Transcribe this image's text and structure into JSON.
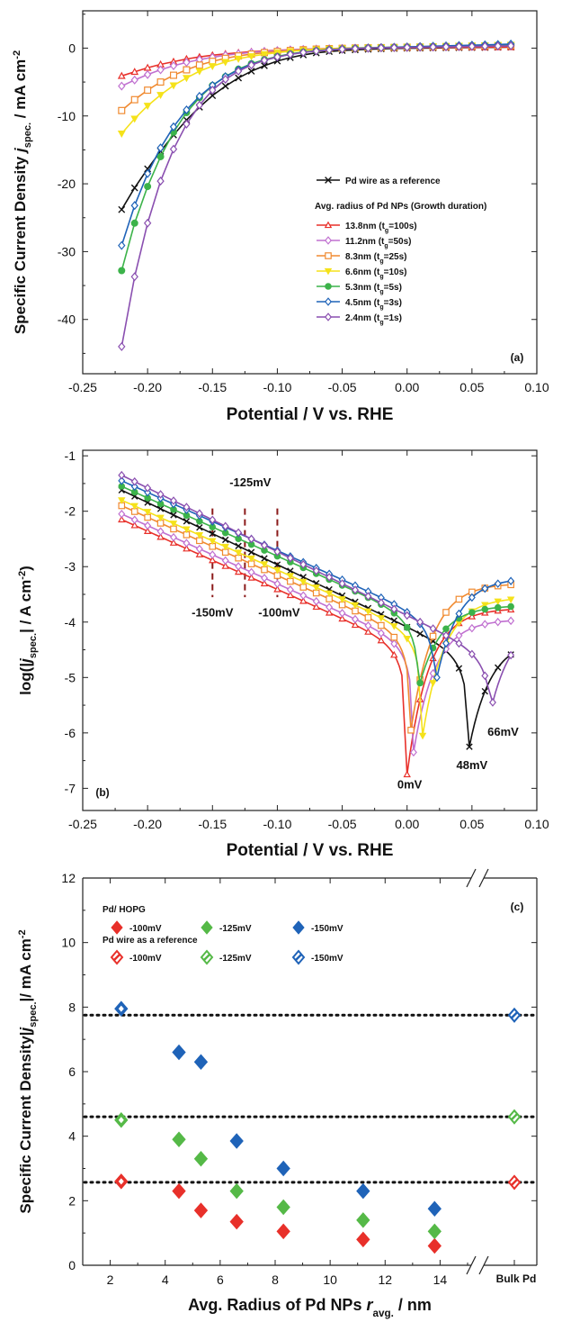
{
  "chart_data": [
    {
      "type": "line",
      "panel_label": "(a)",
      "xlabel": "Potential / V vs. RHE",
      "ylabel": "Specific Current Density j_spec. / mA cm^-2",
      "ylabel_parts": {
        "main": "Specific Current Density ",
        "j": "j",
        "sub": "spec.",
        "unit": " / mA cm",
        "sup": "-2"
      },
      "xlim": [
        -0.25,
        0.1
      ],
      "ylim": [
        -48,
        5.5
      ],
      "xticks": [
        "-0.25",
        "-0.20",
        "-0.15",
        "-0.10",
        "-0.05",
        "0.00",
        "0.05",
        "0.10"
      ],
      "yticks": [
        "0",
        "-10",
        "-20",
        "-30",
        "-40"
      ],
      "grid": false,
      "legend_position": "center-right",
      "legend_header": "Avg. radius of Pd NPs (Growth duration)",
      "x": [
        -0.22,
        -0.21,
        -0.2,
        -0.19,
        -0.18,
        -0.17,
        -0.16,
        -0.15,
        -0.14,
        -0.13,
        -0.12,
        -0.11,
        -0.1,
        -0.09,
        -0.08,
        -0.07,
        -0.06,
        -0.05,
        -0.04,
        -0.03,
        -0.02,
        -0.01,
        0.0,
        0.01,
        0.02,
        0.03,
        0.04,
        0.05,
        0.06,
        0.07,
        0.08
      ],
      "series": [
        {
          "name": "Pd wire as a reference",
          "color": "#111111",
          "marker": "x",
          "values": [
            -23.8,
            -20.6,
            -17.8,
            -15.2,
            -12.8,
            -10.6,
            -8.7,
            -7.0,
            -5.6,
            -4.4,
            -3.4,
            -2.6,
            -1.9,
            -1.4,
            -1.0,
            -0.7,
            -0.5,
            -0.35,
            -0.25,
            -0.17,
            -0.1,
            -0.05,
            -0.02,
            0.0,
            0.02,
            0.04,
            0.06,
            0.08,
            0.1,
            0.12,
            0.15
          ]
        },
        {
          "name": "13.8nm (t_g=100s)",
          "label_main": "13.8nm (t",
          "label_sub": "g",
          "label_tail": "=100s)",
          "color": "#e8302a",
          "marker": "triangle",
          "values": [
            -4.1,
            -3.5,
            -2.9,
            -2.4,
            -2.0,
            -1.6,
            -1.3,
            -1.05,
            -0.85,
            -0.68,
            -0.53,
            -0.42,
            -0.32,
            -0.24,
            -0.17,
            -0.11,
            -0.06,
            -0.02,
            0.0,
            0.02,
            0.04,
            0.05,
            0.06,
            0.08,
            0.09,
            0.1,
            0.11,
            0.12,
            0.13,
            0.14,
            0.15
          ]
        },
        {
          "name": "11.2nm (t_g=50s)",
          "label_main": "11.2nm (t",
          "label_sub": "g",
          "label_tail": "=50s)",
          "color": "#c070d0",
          "marker": "diamond",
          "values": [
            -5.6,
            -4.7,
            -3.9,
            -3.2,
            -2.6,
            -2.1,
            -1.7,
            -1.35,
            -1.05,
            -0.82,
            -0.63,
            -0.48,
            -0.36,
            -0.26,
            -0.18,
            -0.12,
            -0.07,
            -0.03,
            0.0,
            0.03,
            0.06,
            0.08,
            0.1,
            0.13,
            0.16,
            0.19,
            0.22,
            0.25,
            0.28,
            0.31,
            0.35
          ]
        },
        {
          "name": "8.3nm (t_g=25s)",
          "label_main": "8.3nm (t",
          "label_sub": "g",
          "label_tail": "=25s)",
          "color": "#f08a30",
          "marker": "square",
          "values": [
            -9.2,
            -7.6,
            -6.2,
            -5.0,
            -4.0,
            -3.2,
            -2.5,
            -1.95,
            -1.5,
            -1.15,
            -0.88,
            -0.66,
            -0.49,
            -0.35,
            -0.24,
            -0.15,
            -0.08,
            -0.03,
            0.01,
            0.04,
            0.07,
            0.1,
            0.13,
            0.16,
            0.19,
            0.22,
            0.25,
            0.28,
            0.31,
            0.34,
            0.38
          ]
        },
        {
          "name": "6.6nm (t_g=10s)",
          "label_main": "6.6nm (t",
          "label_sub": "g",
          "label_tail": "=10s)",
          "color": "#f5e21a",
          "marker": "triangle-down",
          "values": [
            -12.6,
            -10.4,
            -8.5,
            -6.9,
            -5.5,
            -4.4,
            -3.4,
            -2.65,
            -2.05,
            -1.57,
            -1.2,
            -0.9,
            -0.66,
            -0.47,
            -0.32,
            -0.2,
            -0.1,
            -0.03,
            0.02,
            0.06,
            0.1,
            0.14,
            0.18,
            0.22,
            0.26,
            0.3,
            0.34,
            0.38,
            0.42,
            0.46,
            0.5
          ]
        },
        {
          "name": "5.3nm (t_g=5s)",
          "label_main": "5.3nm (t",
          "label_sub": "g",
          "label_tail": "=5s)",
          "color": "#3cb34a",
          "marker": "circle",
          "values": [
            -32.8,
            -25.8,
            -20.4,
            -16.0,
            -12.4,
            -9.5,
            -7.3,
            -5.5,
            -4.2,
            -3.1,
            -2.3,
            -1.7,
            -1.22,
            -0.85,
            -0.58,
            -0.38,
            -0.23,
            -0.12,
            -0.04,
            0.02,
            0.07,
            0.11,
            0.15,
            0.19,
            0.23,
            0.27,
            0.31,
            0.35,
            0.39,
            0.43,
            0.47
          ]
        },
        {
          "name": "4.5nm (t_g=3s)",
          "label_main": "4.5nm (t",
          "label_sub": "g",
          "label_tail": "=3s)",
          "color": "#1f63b8",
          "marker": "diamond",
          "values": [
            -29.1,
            -23.2,
            -18.5,
            -14.7,
            -11.6,
            -9.1,
            -7.1,
            -5.5,
            -4.2,
            -3.2,
            -2.4,
            -1.8,
            -1.3,
            -0.92,
            -0.63,
            -0.41,
            -0.25,
            -0.13,
            -0.04,
            0.03,
            0.09,
            0.14,
            0.19,
            0.24,
            0.29,
            0.34,
            0.39,
            0.44,
            0.49,
            0.54,
            0.6
          ]
        },
        {
          "name": "2.4nm (t_g=1s)",
          "label_main": "2.4nm (t",
          "label_sub": "g",
          "label_tail": "=1s)",
          "color": "#8a4fb0",
          "marker": "diamond",
          "values": [
            -44.0,
            -33.7,
            -25.8,
            -19.6,
            -14.9,
            -11.2,
            -8.4,
            -6.2,
            -4.6,
            -3.4,
            -2.5,
            -1.8,
            -1.3,
            -0.92,
            -0.64,
            -0.43,
            -0.28,
            -0.17,
            -0.08,
            -0.02,
            0.03,
            0.07,
            0.1,
            0.13,
            0.16,
            0.19,
            0.22,
            0.25,
            0.28,
            0.31,
            0.34
          ]
        }
      ]
    },
    {
      "type": "line",
      "panel_label": "(b)",
      "xlabel": "Potential / V vs. RHE",
      "ylabel": "log(|j_spec.| / A cm^-2)",
      "ylabel_parts": {
        "main": "log(|",
        "j": "j",
        "sub": "spec.",
        "unit": "| / A cm",
        "sup": "-2",
        "tail": ")"
      },
      "xlim": [
        -0.25,
        0.1
      ],
      "ylim": [
        -7.4,
        -0.9
      ],
      "xticks": [
        "-0.25",
        "-0.20",
        "-0.15",
        "-0.10",
        "-0.05",
        "0.00",
        "0.05",
        "0.10"
      ],
      "yticks": [
        "-1",
        "-2",
        "-3",
        "-4",
        "-5",
        "-6",
        "-7"
      ],
      "grid": false,
      "reference_lines": [
        {
          "x": -0.15,
          "label": "-150mV"
        },
        {
          "x": -0.125,
          "label": "-125mV"
        },
        {
          "x": -0.1,
          "label": "-100mV"
        }
      ],
      "annotations": [
        "0mV",
        "48mV",
        "66mV"
      ],
      "series": [
        {
          "name": "Pd wire as a reference",
          "color": "#111111",
          "marker": "x",
          "j0": -1.62,
          "slope": 11.2,
          "zero_x": 0.048,
          "min": -6.25,
          "right": -4.3
        },
        {
          "name": "13.8nm (t_g=100s)",
          "color": "#e8302a",
          "marker": "triangle",
          "j0": -2.15,
          "slope": 10.5,
          "zero_x": 0.0,
          "min": -6.75,
          "right": -3.75
        },
        {
          "name": "11.2nm (t_g=50s)",
          "color": "#c070d0",
          "marker": "diamond",
          "j0": -2.05,
          "slope": 10.5,
          "zero_x": 0.005,
          "min": -6.35,
          "right": -3.95
        },
        {
          "name": "8.3nm (t_g=25s)",
          "color": "#f08a30",
          "marker": "square",
          "j0": -1.9,
          "slope": 10.5,
          "zero_x": 0.003,
          "min": -5.95,
          "right": -3.3
        },
        {
          "name": "6.6nm (t_g=10s)",
          "color": "#f5e21a",
          "marker": "triangle-down",
          "j0": -1.8,
          "slope": 10.5,
          "zero_x": 0.012,
          "min": -6.05,
          "right": -3.55
        },
        {
          "name": "5.3nm (t_g=5s)",
          "color": "#3cb34a",
          "marker": "circle",
          "j0": -1.55,
          "slope": 10.5,
          "zero_x": 0.01,
          "min": -5.1,
          "right": -3.7
        },
        {
          "name": "4.5nm (t_g=3s)",
          "color": "#1f63b8",
          "marker": "diamond",
          "j0": -1.45,
          "slope": 10.5,
          "zero_x": 0.023,
          "min": -5.0,
          "right": -3.2
        },
        {
          "name": "2.4nm (t_g=1s)",
          "color": "#8a4fb0",
          "marker": "diamond",
          "j0": -1.35,
          "slope": 11.5,
          "zero_x": 0.066,
          "min": -5.45,
          "right": -3.95
        }
      ]
    },
    {
      "type": "scatter",
      "panel_label": "(c)",
      "xlabel": "Avg. Radius of Pd NPs r_avg. / nm",
      "xlabel_parts": {
        "main": "Avg. Radius of Pd NPs ",
        "r": "r",
        "sub": "avg.",
        "unit": " / nm"
      },
      "ylabel": "Specific Current Density|j_spec.|/ mA cm^-2",
      "ylabel_parts": {
        "main": "Specific Current Density|",
        "j": "j",
        "sub": "spec.",
        "unit": "|/ mA cm",
        "sup": "-2"
      },
      "xlim": [
        1,
        16.5
      ],
      "ylim": [
        0,
        12
      ],
      "xticks": [
        "2",
        "4",
        "6",
        "8",
        "10",
        "12",
        "14"
      ],
      "yticks": [
        "0",
        "2",
        "4",
        "6",
        "8",
        "10",
        "12"
      ],
      "bulk_label": "Bulk Pd",
      "grid": false,
      "legend_position": "top-left",
      "legend_groups": [
        "Pd/ HOPG",
        "Pd wire as a reference"
      ],
      "legend_items": [
        "-100mV",
        "-125mV",
        "-150mV"
      ],
      "reference_levels": [
        {
          "name": "-100mV",
          "value": 2.57,
          "color": "#e8302a"
        },
        {
          "name": "-125mV",
          "value": 4.6,
          "color": "#55b947"
        },
        {
          "name": "-150mV",
          "value": 7.75,
          "color": "#1f63b8"
        }
      ],
      "x": [
        2.4,
        4.5,
        5.3,
        6.6,
        8.3,
        11.2,
        13.8
      ],
      "series": [
        {
          "name": "-100mV",
          "color": "#e8302a",
          "values": [
            2.6,
            2.3,
            1.7,
            1.35,
            1.05,
            0.8,
            0.6
          ]
        },
        {
          "name": "-125mV",
          "color": "#55b947",
          "values": [
            4.5,
            3.9,
            3.3,
            2.3,
            1.8,
            1.4,
            1.05
          ]
        },
        {
          "name": "-150mV",
          "color": "#1f63b8",
          "values": [
            7.95,
            6.6,
            6.3,
            3.85,
            3.0,
            2.3,
            1.75
          ]
        }
      ]
    }
  ]
}
